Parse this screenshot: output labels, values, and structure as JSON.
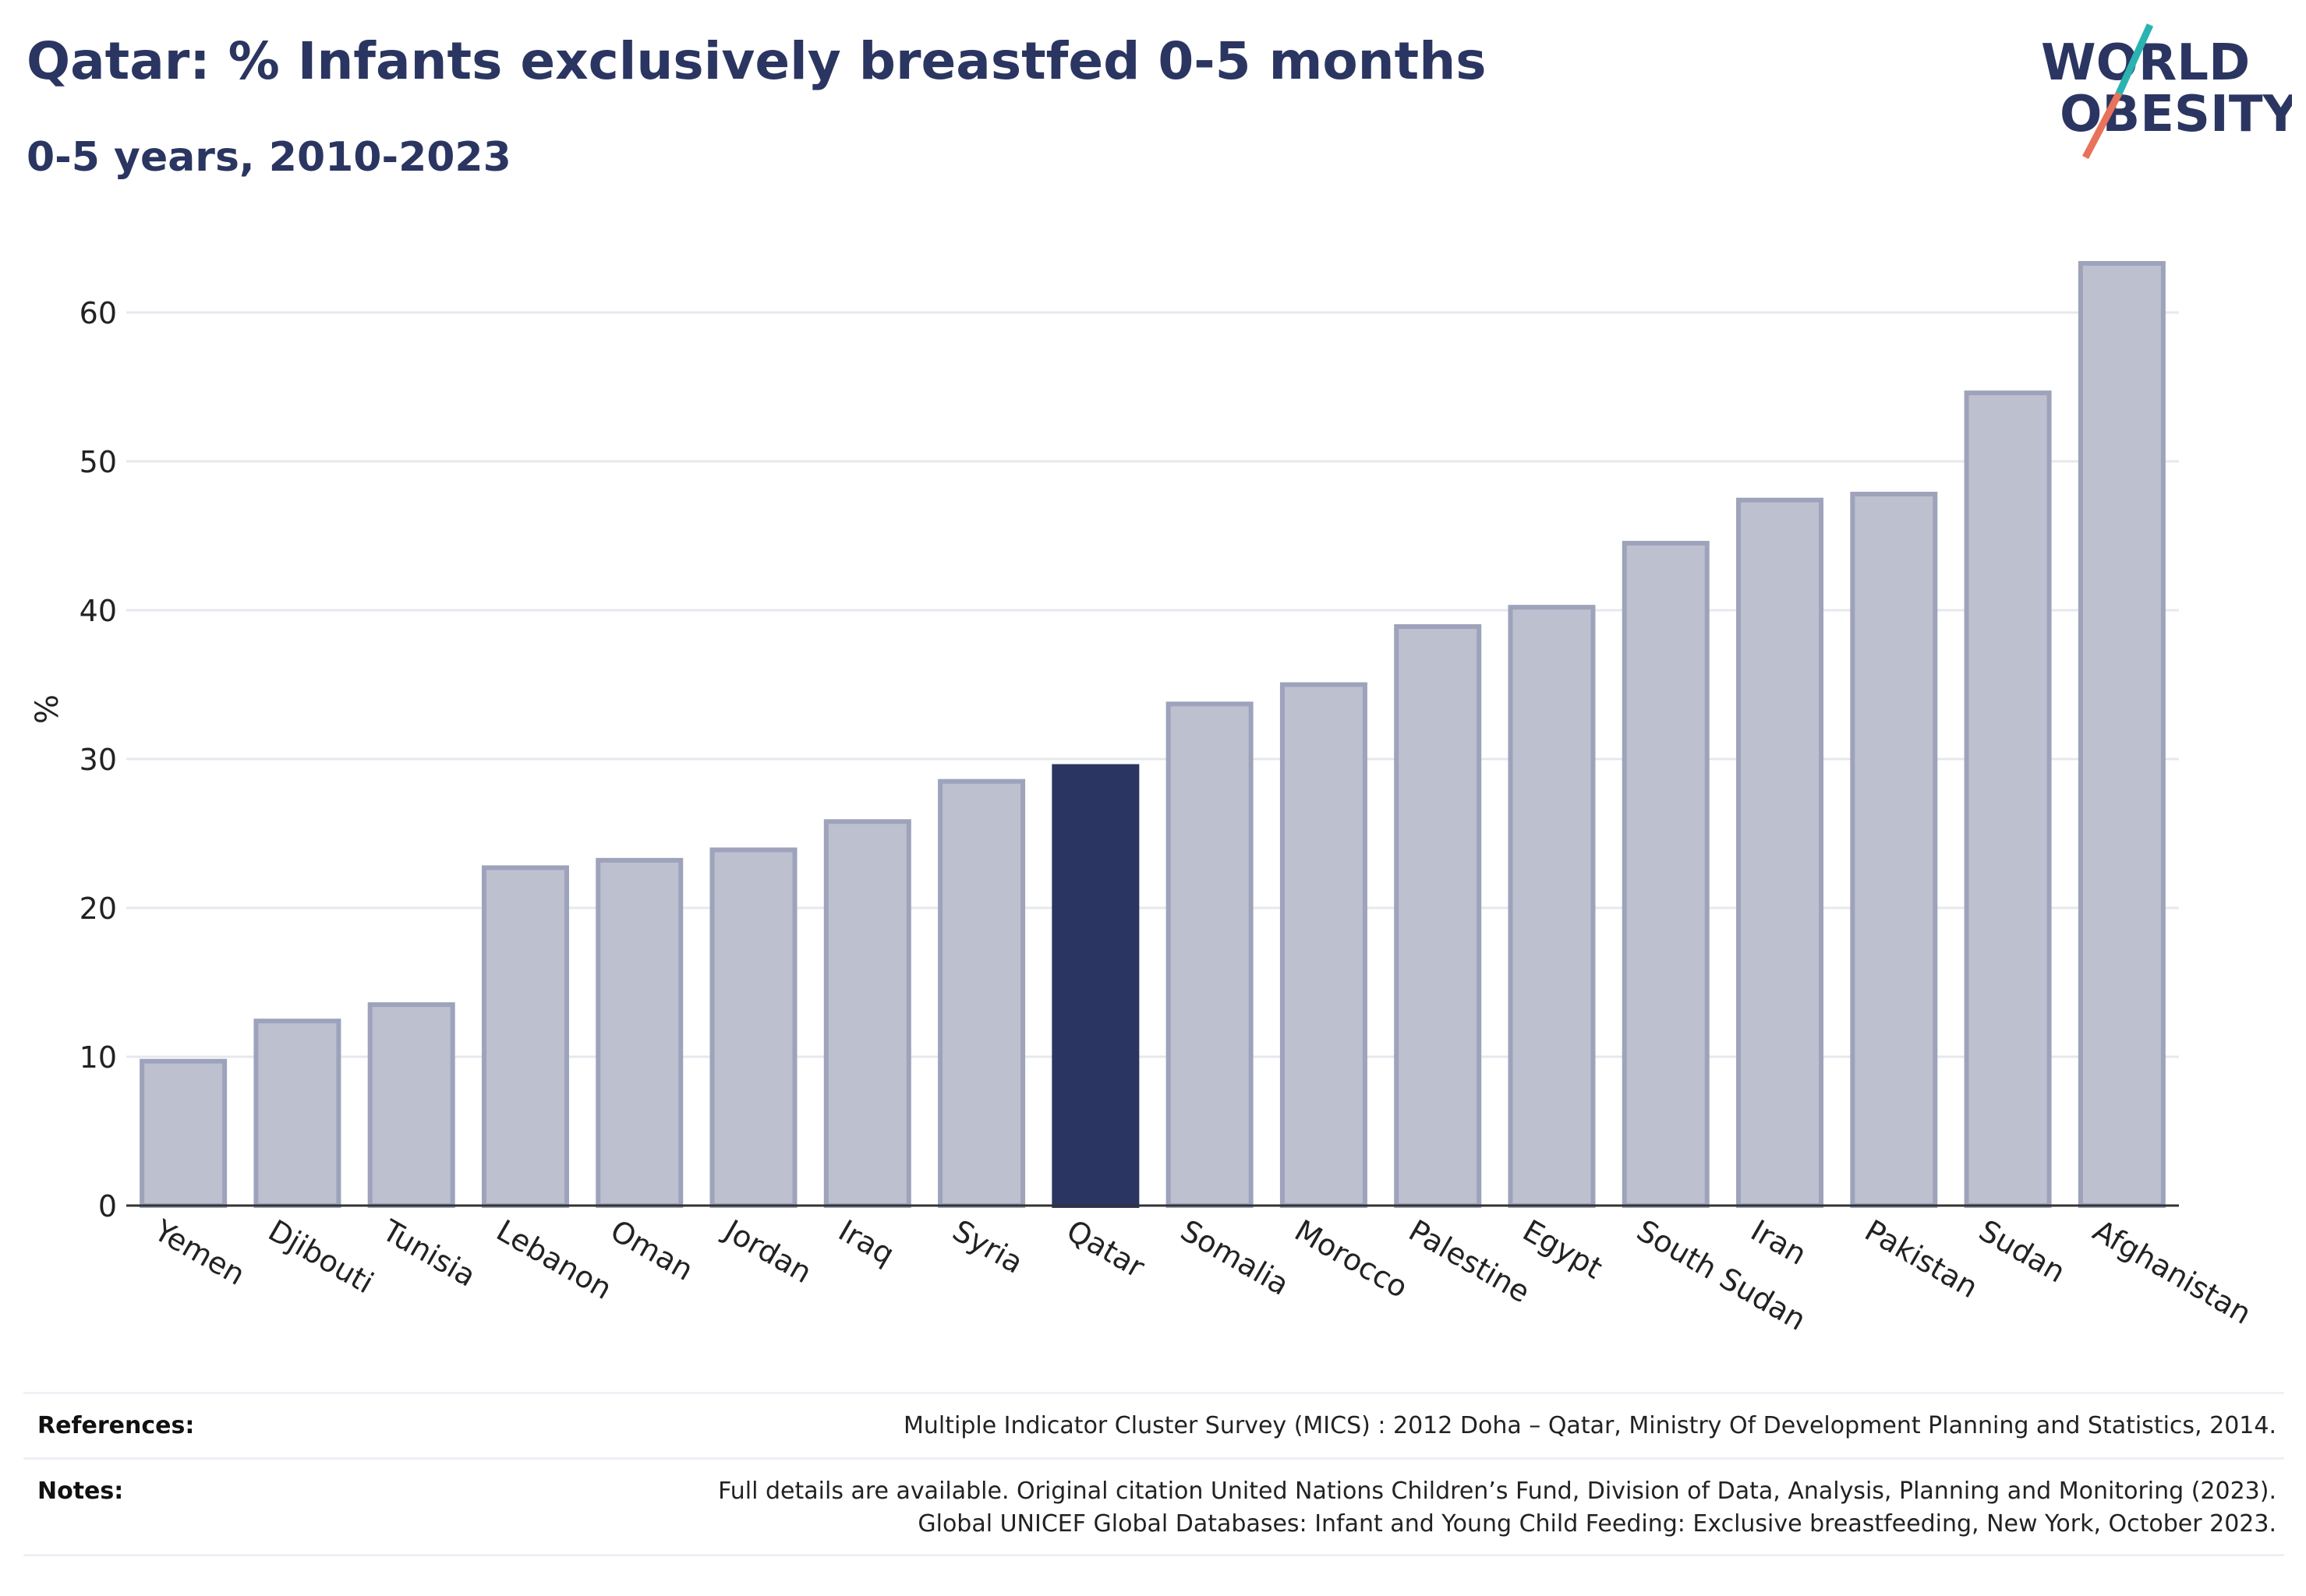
{
  "header": {
    "title": "Qatar: % Infants exclusively breastfed 0-5 months",
    "subtitle": "0-5 years, 2010-2023"
  },
  "logo": {
    "line1": "WORLD",
    "line2": "OBESITY"
  },
  "colors": {
    "bar": "#bcc0cf",
    "bar_stroke": "#9ea3bb",
    "highlight": "#2b3561",
    "grid": "#e6e8ee",
    "axis": "#333333",
    "logo_teal": "#2ab3b1",
    "logo_coral": "#e8735a"
  },
  "chart_data": {
    "type": "bar",
    "categories": [
      "Yemen",
      "Djibouti",
      "Tunisia",
      "Lebanon",
      "Oman",
      "Jordan",
      "Iraq",
      "Syria",
      "Qatar",
      "Somalia",
      "Morocco",
      "Palestine",
      "Egypt",
      "South Sudan",
      "Iran",
      "Pakistan",
      "Sudan",
      "Afghanistan"
    ],
    "values": [
      9.7,
      12.4,
      13.5,
      22.7,
      23.2,
      23.9,
      25.8,
      28.5,
      29.5,
      33.7,
      35.0,
      38.9,
      40.2,
      44.5,
      47.4,
      47.8,
      54.6,
      63.3
    ],
    "highlight": "Qatar",
    "ylabel": "%",
    "ylim": [
      0,
      65
    ],
    "yticks": [
      0,
      10,
      20,
      30,
      40,
      50,
      60
    ],
    "grid": true
  },
  "footer": {
    "references_label": "References:",
    "references_text": "Multiple Indicator Cluster Survey (MICS) : 2012 Doha – Qatar, Ministry Of Development Planning and Statistics, 2014.",
    "notes_label": "Notes:",
    "notes_line1": "Full details are available. Original citation United Nations Children’s Fund, Division of Data, Analysis, Planning and Monitoring (2023).",
    "notes_line2": "Global UNICEF Global Databases: Infant and Young Child Feeding: Exclusive breastfeeding, New York, October 2023."
  }
}
